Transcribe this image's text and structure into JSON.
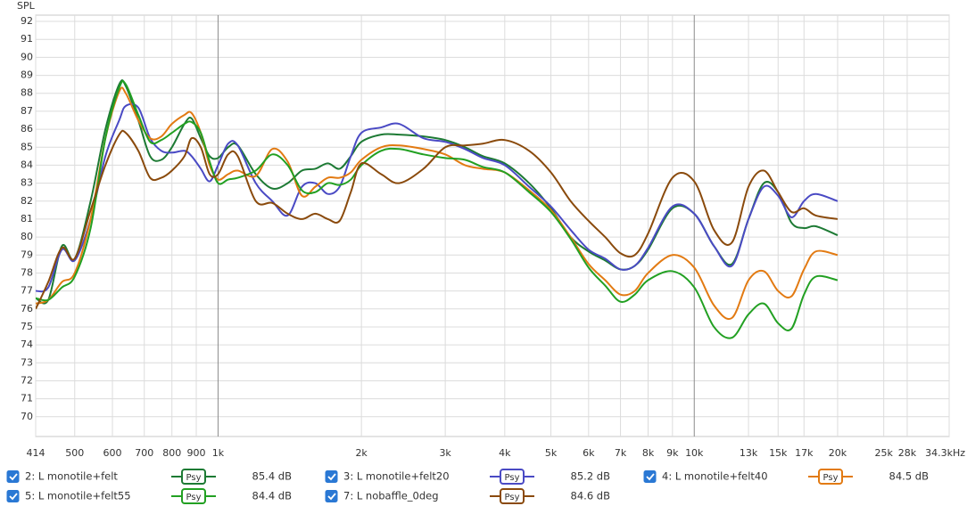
{
  "chart_data": {
    "type": "line",
    "ylabel": "SPL",
    "log_x": true,
    "grid": true,
    "xlim": [
      414,
      34300
    ],
    "ylim": [
      68.9,
      92.35
    ],
    "xticks": [
      414,
      500,
      600,
      700,
      800,
      900,
      {
        "value": 1000,
        "label": "1k"
      },
      {
        "value": 2000,
        "label": "2k"
      },
      {
        "value": 3000,
        "label": "3k"
      },
      {
        "value": 4000,
        "label": "4k"
      },
      {
        "value": 5000,
        "label": "5k"
      },
      {
        "value": 6000,
        "label": "6k"
      },
      {
        "value": 7000,
        "label": "7k"
      },
      {
        "value": 8000,
        "label": "8k"
      },
      {
        "value": 9000,
        "label": "9k"
      },
      {
        "value": 10000,
        "label": "10k"
      },
      {
        "value": 13000,
        "label": "13k"
      },
      {
        "value": 15000,
        "label": "15k"
      },
      {
        "value": 17000,
        "label": "17k"
      },
      {
        "value": 20000,
        "label": "20k"
      },
      {
        "value": 25000,
        "label": "25k"
      },
      {
        "value": 28000,
        "label": "28k"
      },
      {
        "value": 34300,
        "label": "34.3kHz"
      }
    ],
    "yticks": [
      70,
      71,
      72,
      73,
      74,
      75,
      76,
      77,
      78,
      79,
      80,
      81,
      82,
      83,
      84,
      85,
      86,
      87,
      88,
      89,
      90,
      91,
      92
    ],
    "x": [
      414,
      440,
      470,
      500,
      540,
      580,
      620,
      640,
      680,
      720,
      760,
      800,
      850,
      880,
      920,
      960,
      1000,
      1050,
      1100,
      1200,
      1300,
      1400,
      1500,
      1600,
      1700,
      1800,
      1900,
      2000,
      2200,
      2400,
      2700,
      3000,
      3300,
      3600,
      4000,
      4500,
      5000,
      5500,
      6000,
      6500,
      7000,
      7500,
      8000,
      9000,
      10000,
      11000,
      12000,
      13000,
      14000,
      15000,
      16000,
      17000,
      18000,
      20000
    ],
    "series": [
      {
        "name": "2: L monotile+felt",
        "color": "#1d7a34",
        "checked": true,
        "smoothing": "Psy",
        "level": "85.4 dB",
        "values": [
          76.6,
          76.5,
          79.5,
          78.8,
          82,
          86,
          88.5,
          88.4,
          86.5,
          84.5,
          84.3,
          85.0,
          86.3,
          86.6,
          85.5,
          84.5,
          84.4,
          85.0,
          85.1,
          83.5,
          82.7,
          83.0,
          83.7,
          83.8,
          84.1,
          83.8,
          84.5,
          85.3,
          85.7,
          85.7,
          85.6,
          85.4,
          85.0,
          84.5,
          84.1,
          83.0,
          81.6,
          80.0,
          79.2,
          78.7,
          78.2,
          78.4,
          79.3,
          81.6,
          81.3,
          79.5,
          78.5,
          81.0,
          83.0,
          82.5,
          80.8,
          80.5,
          80.6,
          80.1
        ]
      },
      {
        "name": "3: L monotile+felt20",
        "color": "#4a4ac4",
        "checked": true,
        "smoothing": "Psy",
        "level": "85.2 dB",
        "values": [
          77.0,
          77.2,
          79.3,
          78.7,
          81,
          84.5,
          86.5,
          87.3,
          87.2,
          85.5,
          84.8,
          84.7,
          84.8,
          84.5,
          83.8,
          83.1,
          84.0,
          85.2,
          85.1,
          83.0,
          82.0,
          81.2,
          82.8,
          83.0,
          82.4,
          82.8,
          84.5,
          85.8,
          86.1,
          86.3,
          85.5,
          85.3,
          84.9,
          84.4,
          84.0,
          82.8,
          81.7,
          80.4,
          79.3,
          78.8,
          78.2,
          78.4,
          79.4,
          81.7,
          81.3,
          79.5,
          78.4,
          81.0,
          82.8,
          82.3,
          81.1,
          82.0,
          82.4,
          82.0
        ]
      },
      {
        "name": "4: L monotile+felt40",
        "color": "#e27a12",
        "checked": true,
        "smoothing": "Psy",
        "level": "84.5 dB",
        "values": [
          76.3,
          76.5,
          77.5,
          78.0,
          81,
          85.5,
          88.1,
          88.0,
          86.5,
          85.5,
          85.6,
          86.3,
          86.8,
          86.9,
          85.8,
          84.0,
          83.2,
          83.5,
          83.7,
          83.4,
          84.9,
          84.2,
          82.3,
          82.8,
          83.3,
          83.3,
          83.6,
          84.3,
          85.0,
          85.1,
          84.9,
          84.6,
          84.0,
          83.8,
          83.6,
          82.6,
          81.5,
          80.0,
          78.5,
          77.6,
          76.8,
          77.0,
          78.0,
          79.0,
          78.3,
          76.2,
          75.5,
          77.6,
          78.1,
          77.0,
          76.7,
          78.2,
          79.2,
          79.0
        ]
      },
      {
        "name": "5: L monotile+felt55",
        "color": "#22a022",
        "checked": true,
        "smoothing": "Psy",
        "level": "84.4 dB",
        "values": [
          76.6,
          76.5,
          77.2,
          77.8,
          80.5,
          85.5,
          88.3,
          88.5,
          86.8,
          85.3,
          85.4,
          85.8,
          86.3,
          86.4,
          85.8,
          84.2,
          83.0,
          83.2,
          83.3,
          83.7,
          84.6,
          84.0,
          82.6,
          82.5,
          83.0,
          82.9,
          83.2,
          84.0,
          84.8,
          84.9,
          84.6,
          84.4,
          84.3,
          83.9,
          83.6,
          82.5,
          81.4,
          79.9,
          78.3,
          77.3,
          76.4,
          76.8,
          77.6,
          78.1,
          77.2,
          75.0,
          74.4,
          75.7,
          76.3,
          75.2,
          74.9,
          76.8,
          77.8,
          77.6
        ]
      },
      {
        "name": "7: L nobaffle_0deg",
        "color": "#8a4a0c",
        "checked": true,
        "smoothing": "Psy",
        "level": "84.6 dB",
        "values": [
          76.0,
          77.5,
          79.4,
          78.8,
          81.5,
          84.0,
          85.7,
          85.8,
          84.8,
          83.3,
          83.3,
          83.7,
          84.5,
          85.5,
          85.0,
          83.5,
          83.5,
          84.6,
          84.5,
          82.0,
          81.9,
          81.3,
          81.0,
          81.3,
          81.0,
          80.9,
          82.5,
          84.1,
          83.5,
          83.0,
          83.8,
          85.0,
          85.1,
          85.2,
          85.4,
          84.8,
          83.6,
          82.0,
          80.9,
          80.0,
          79.1,
          79.0,
          80.2,
          83.3,
          83.1,
          80.4,
          79.7,
          82.8,
          83.7,
          82.5,
          81.4,
          81.6,
          81.2,
          81.0
        ]
      }
    ]
  }
}
